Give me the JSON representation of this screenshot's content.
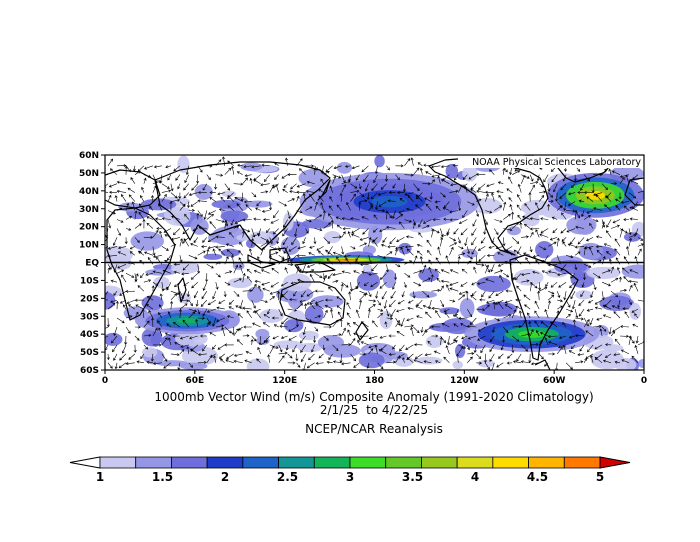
{
  "credit": "NOAA Physical Sciences Laboratory",
  "title_line1": "1000mb Vector Wind (m/s) Composite Anomaly (1991-2020 Climatology)",
  "title_line2": "2/1/25  to 4/22/25",
  "title_line3": "NCEP/NCAR Reanalysis",
  "lat_labels": [
    "60N",
    "50N",
    "40N",
    "30N",
    "20N",
    "10N",
    "EQ",
    "10S",
    "20S",
    "30S",
    "40S",
    "50S",
    "60S"
  ],
  "lon_labels": [
    "0",
    "60E",
    "120E",
    "180",
    "120W",
    "60W",
    "0"
  ],
  "colorbar": {
    "labels": [
      "1",
      "1.5",
      "2",
      "2.5",
      "3",
      "3.5",
      "4",
      "4.5",
      "5"
    ],
    "colors": [
      "#c8c8f0",
      "#9696e6",
      "#6e6edc",
      "#1e3cc8",
      "#1e64c8",
      "#149696",
      "#14b45a",
      "#3cdc28",
      "#64c828",
      "#96c81e",
      "#dcdc1e",
      "#ffdc00",
      "#ffb400",
      "#ff7800",
      "#ff2800",
      "#d20000"
    ]
  },
  "anomaly_regions": [
    {
      "name": "western-equatorial-pacific",
      "lon": [
        122,
        200
      ],
      "lat": [
        -1,
        4
      ],
      "level": 13
    },
    {
      "name": "north-atlantic",
      "lon": [
        295,
        360
      ],
      "lat": [
        25,
        50
      ],
      "level": 11
    },
    {
      "name": "indian-ocean-south",
      "lon": [
        20,
        90
      ],
      "lat": [
        -40,
        -25
      ],
      "level": 6
    },
    {
      "name": "south-pacific",
      "lon": [
        240,
        330
      ],
      "lat": [
        -50,
        -30
      ],
      "level": 7
    },
    {
      "name": "north-pacific",
      "lon": [
        130,
        250
      ],
      "lat": [
        18,
        50
      ],
      "level": 4
    }
  ]
}
